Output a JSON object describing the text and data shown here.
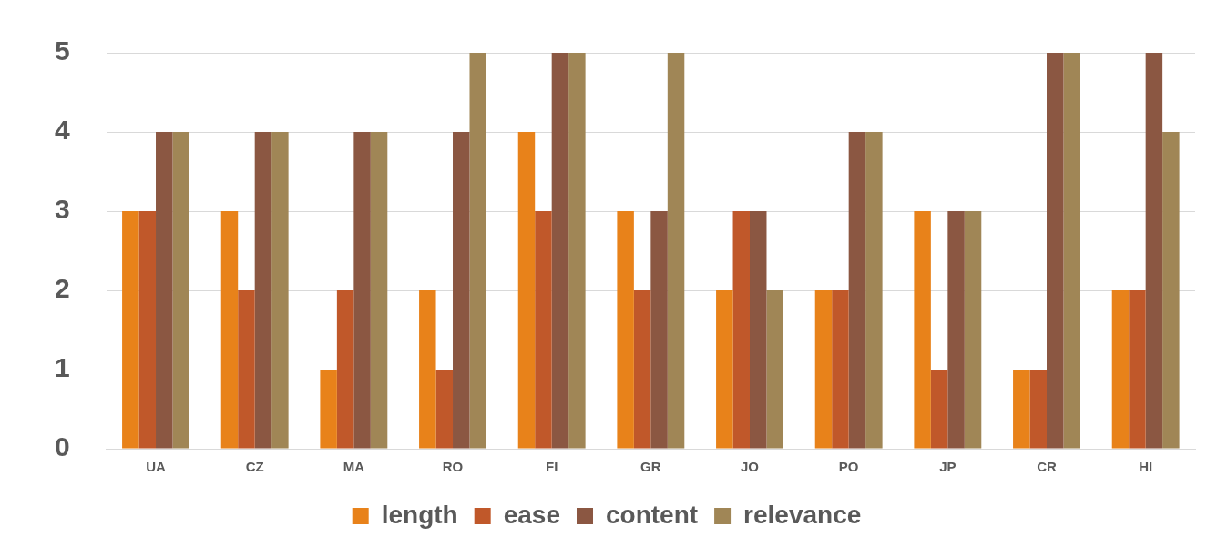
{
  "chart_data": {
    "type": "bar",
    "categories": [
      "UA",
      "CZ",
      "MA",
      "RO",
      "FI",
      "GR",
      "JO",
      "PO",
      "JP",
      "CR",
      "HI"
    ],
    "series": [
      {
        "name": "length",
        "color": "#e8821a",
        "values": [
          3,
          3,
          1,
          2,
          4,
          3,
          2,
          2,
          3,
          1,
          2
        ]
      },
      {
        "name": "ease",
        "color": "#c0582a",
        "values": [
          3,
          2,
          2,
          1,
          3,
          2,
          3,
          2,
          1,
          1,
          2
        ]
      },
      {
        "name": "content",
        "color": "#8b5742",
        "values": [
          4,
          4,
          4,
          4,
          5,
          3,
          3,
          4,
          3,
          5,
          5
        ]
      },
      {
        "name": "relevance",
        "color": "#a08656",
        "values": [
          4,
          4,
          4,
          5,
          5,
          5,
          2,
          4,
          3,
          5,
          4
        ]
      }
    ],
    "ylim": [
      0,
      5
    ],
    "yticks": [
      0,
      1,
      2,
      3,
      4,
      5
    ],
    "grid": "y",
    "legend": "bottom"
  }
}
